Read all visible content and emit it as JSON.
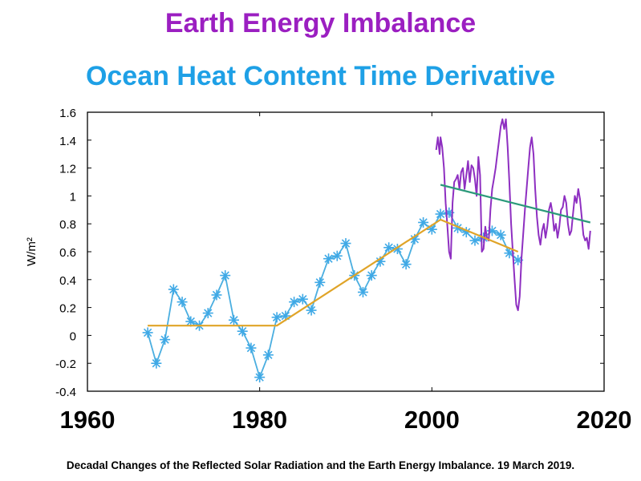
{
  "title": "Earth Energy Imbalance",
  "subtitle": "Ocean Heat Content Time Derivative",
  "caption": "Decadal Changes of the Reflected Solar Radiation and the Earth Energy Imbalance. 19 March 2019.",
  "colors": {
    "title": "#9b1fc1",
    "subtitle": "#1ea0e6",
    "ohc_series": "#4aaee0",
    "ohc_markers": "#3fa9e6",
    "eei_series": "#8e2fc1",
    "trend_ohc": "#e0a428",
    "trend_eei": "#2b9a7a"
  },
  "chart_data": {
    "type": "line",
    "ylabel": "W/m²",
    "xlim": [
      1960,
      2020
    ],
    "ylim": [
      -0.4,
      1.6
    ],
    "x_ticks": [
      "1960",
      "1980",
      "2000",
      "2020"
    ],
    "y_ticks": [
      "-0.4",
      "-0.2",
      "0",
      "0.2",
      "0.4",
      "0.6",
      "0.8",
      "1",
      "1.2",
      "1.4",
      "1.6"
    ],
    "grid": false,
    "series": [
      {
        "style": "line+star-markers",
        "color": "#4aaee0",
        "x": [
          1967,
          1968,
          1969,
          1970,
          1971,
          1972,
          1973,
          1974,
          1975,
          1976,
          1977,
          1978,
          1979,
          1980,
          1981,
          1982,
          1983,
          1984,
          1985,
          1986,
          1987,
          1988,
          1989,
          1990,
          1991,
          1992,
          1993,
          1994,
          1995,
          1996,
          1997,
          1998,
          1999,
          2000,
          2001,
          2002,
          2003,
          2004,
          2005,
          2006,
          2007,
          2008,
          2009,
          2010
        ],
        "values": [
          0.02,
          -0.2,
          -0.03,
          0.33,
          0.24,
          0.1,
          0.07,
          0.16,
          0.29,
          0.43,
          0.11,
          0.03,
          -0.09,
          -0.3,
          -0.14,
          0.13,
          0.14,
          0.24,
          0.26,
          0.18,
          0.38,
          0.55,
          0.57,
          0.66,
          0.43,
          0.31,
          0.43,
          0.53,
          0.63,
          0.62,
          0.51,
          0.69,
          0.81,
          0.76,
          0.87,
          0.88,
          0.77,
          0.74,
          0.68,
          0.7,
          0.75,
          0.72,
          0.59,
          0.54
        ]
      },
      {
        "style": "line",
        "color": "#8e2fc1",
        "x": [
          2000.5,
          2000.7,
          2000.9,
          2001.0,
          2001.2,
          2001.4,
          2001.6,
          2001.8,
          2002.0,
          2002.2,
          2002.4,
          2002.6,
          2002.8,
          2003.0,
          2003.2,
          2003.4,
          2003.6,
          2003.8,
          2004.0,
          2004.2,
          2004.4,
          2004.6,
          2004.8,
          2005.0,
          2005.2,
          2005.4,
          2005.6,
          2005.8,
          2006.0,
          2006.2,
          2006.4,
          2006.6,
          2006.8,
          2007.0,
          2007.2,
          2007.4,
          2007.6,
          2007.8,
          2008.0,
          2008.2,
          2008.4,
          2008.6,
          2008.8,
          2009.0,
          2009.2,
          2009.4,
          2009.6,
          2009.8,
          2010.0,
          2010.2,
          2010.4,
          2010.6,
          2010.8,
          2011.0,
          2011.2,
          2011.4,
          2011.6,
          2011.8,
          2012.0,
          2012.2,
          2012.4,
          2012.6,
          2012.8,
          2013.0,
          2013.2,
          2013.4,
          2013.6,
          2013.8,
          2014.0,
          2014.2,
          2014.4,
          2014.6,
          2014.8,
          2015.0,
          2015.2,
          2015.4,
          2015.6,
          2015.8,
          2016.0,
          2016.2,
          2016.4,
          2016.6,
          2016.8,
          2017.0,
          2017.2,
          2017.4,
          2017.6,
          2017.8,
          2018.0,
          2018.2,
          2018.4
        ],
        "values": [
          1.33,
          1.42,
          1.3,
          1.42,
          1.35,
          1.2,
          0.95,
          0.78,
          0.6,
          0.55,
          0.95,
          1.1,
          1.12,
          1.15,
          1.05,
          1.17,
          1.2,
          1.05,
          1.15,
          1.25,
          1.1,
          1.22,
          1.2,
          1.12,
          1.0,
          1.28,
          1.15,
          0.6,
          0.62,
          0.78,
          0.7,
          0.68,
          0.9,
          1.05,
          1.12,
          1.2,
          1.3,
          1.4,
          1.5,
          1.55,
          1.48,
          1.55,
          1.35,
          1.1,
          0.8,
          0.6,
          0.4,
          0.22,
          0.18,
          0.28,
          0.55,
          0.72,
          0.9,
          1.05,
          1.2,
          1.35,
          1.42,
          1.3,
          1.05,
          0.85,
          0.72,
          0.65,
          0.75,
          0.8,
          0.7,
          0.78,
          0.9,
          0.95,
          0.88,
          0.75,
          0.8,
          0.7,
          0.78,
          0.9,
          0.92,
          1.0,
          0.95,
          0.8,
          0.72,
          0.75,
          0.88,
          1.0,
          0.95,
          1.05,
          0.98,
          0.85,
          0.72,
          0.68,
          0.7,
          0.62,
          0.75
        ]
      },
      {
        "style": "trend",
        "color": "#e0a428",
        "x": [
          1967,
          1982,
          2001,
          2010
        ],
        "values": [
          0.07,
          0.07,
          0.83,
          0.6
        ]
      },
      {
        "style": "trend",
        "color": "#2b9a7a",
        "x": [
          2001,
          2018.4
        ],
        "values": [
          1.08,
          0.81
        ]
      }
    ]
  }
}
